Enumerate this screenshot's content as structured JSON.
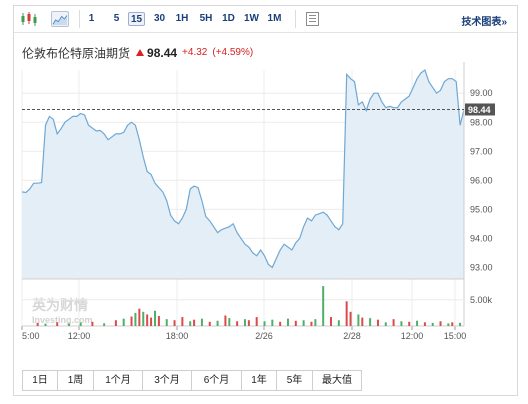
{
  "toolbar": {
    "intervals": [
      "1",
      "5",
      "15",
      "30",
      "1H",
      "5H",
      "1D",
      "1W",
      "1M"
    ],
    "active_interval": "15",
    "chart_link_label": "技术图表",
    "chart_link_suffix": "»"
  },
  "quote": {
    "name": "伦敦布伦特原油期货",
    "last": "98.44",
    "change": "+4.32",
    "change_pct": "(+4.59%)"
  },
  "watermark": {
    "cn": "英为财情",
    "en": "Investing.com"
  },
  "ranges": [
    "1日",
    "1周",
    "1个月",
    "3个月",
    "6个月",
    "1年",
    "5年",
    "最大值"
  ],
  "colors": {
    "line": "#6fa8d4",
    "area": "#e4eef7",
    "up": "#d94b4b",
    "down": "#4fae6a",
    "last_tag": "#555555",
    "link": "#1b3f7a"
  },
  "chart_data": {
    "type": "area",
    "title": "",
    "y_range": [
      92.6,
      99.8
    ],
    "y_ticks": [
      93.0,
      94.0,
      95.0,
      96.0,
      97.0,
      98.0,
      99.0
    ],
    "y_tick_labels": [
      "93.00",
      "94.00",
      "95.00",
      "96.00",
      "97.00",
      "98.00",
      "99.00"
    ],
    "x_tick_labels": [
      "5:00",
      "12:00",
      "18:00",
      "2/26",
      "2/28",
      "12:00",
      "15:00"
    ],
    "last_value": 98.44,
    "last_label": "98.44",
    "grid": true,
    "price": [
      95.6,
      95.58,
      95.7,
      95.9,
      95.9,
      95.92,
      97.9,
      98.2,
      98.1,
      97.6,
      97.78,
      98.0,
      98.1,
      98.2,
      98.2,
      98.3,
      98.25,
      97.9,
      97.8,
      97.7,
      97.72,
      97.6,
      97.4,
      97.5,
      97.6,
      97.6,
      97.65,
      97.9,
      98.0,
      97.9,
      97.4,
      96.8,
      96.3,
      96.2,
      95.9,
      95.75,
      95.6,
      95.3,
      94.8,
      94.6,
      94.5,
      94.7,
      95.0,
      95.7,
      95.8,
      95.75,
      95.3,
      94.75,
      94.6,
      94.4,
      94.2,
      94.3,
      94.35,
      94.4,
      94.5,
      94.2,
      94.0,
      93.8,
      93.7,
      93.5,
      93.4,
      93.6,
      93.4,
      93.1,
      93.0,
      93.3,
      93.6,
      93.8,
      93.7,
      93.6,
      93.85,
      94.0,
      94.4,
      94.7,
      94.6,
      94.8,
      94.85,
      94.9,
      94.8,
      94.6,
      94.4,
      94.3,
      94.5,
      99.65,
      99.5,
      99.4,
      98.6,
      98.7,
      98.4,
      98.8,
      99.0,
      99.0,
      98.7,
      98.5,
      98.55,
      98.5,
      98.5,
      98.7,
      98.8,
      98.9,
      99.2,
      99.5,
      99.7,
      99.8,
      99.4,
      99.2,
      99.0,
      99.1,
      99.4,
      99.5,
      99.5,
      99.4,
      97.9,
      98.44
    ],
    "volume_axis": {
      "range": [
        0,
        8000
      ],
      "ticks": [
        5000
      ],
      "tick_labels": [
        "5.00k"
      ]
    },
    "volume": [
      {
        "i": 4,
        "v": 600,
        "up": true
      },
      {
        "i": 6,
        "v": 450,
        "up": false
      },
      {
        "i": 9,
        "v": 700,
        "up": true
      },
      {
        "i": 12,
        "v": 500,
        "up": false
      },
      {
        "i": 15,
        "v": 650,
        "up": false
      },
      {
        "i": 18,
        "v": 800,
        "up": true
      },
      {
        "i": 21,
        "v": 520,
        "up": false
      },
      {
        "i": 24,
        "v": 1100,
        "up": true
      },
      {
        "i": 26,
        "v": 1400,
        "up": false
      },
      {
        "i": 28,
        "v": 1800,
        "up": true
      },
      {
        "i": 29,
        "v": 2500,
        "up": false
      },
      {
        "i": 30,
        "v": 3300,
        "up": true
      },
      {
        "i": 31,
        "v": 2700,
        "up": false
      },
      {
        "i": 32,
        "v": 2200,
        "up": true
      },
      {
        "i": 33,
        "v": 1600,
        "up": true
      },
      {
        "i": 34,
        "v": 2900,
        "up": false
      },
      {
        "i": 35,
        "v": 1900,
        "up": true
      },
      {
        "i": 37,
        "v": 1300,
        "up": false
      },
      {
        "i": 39,
        "v": 1100,
        "up": true
      },
      {
        "i": 41,
        "v": 1700,
        "up": true
      },
      {
        "i": 43,
        "v": 900,
        "up": false
      },
      {
        "i": 44,
        "v": 1200,
        "up": true
      },
      {
        "i": 46,
        "v": 1400,
        "up": false
      },
      {
        "i": 48,
        "v": 800,
        "up": true
      },
      {
        "i": 50,
        "v": 1000,
        "up": false
      },
      {
        "i": 52,
        "v": 2000,
        "up": true
      },
      {
        "i": 53,
        "v": 1500,
        "up": false
      },
      {
        "i": 55,
        "v": 900,
        "up": true
      },
      {
        "i": 57,
        "v": 1300,
        "up": false
      },
      {
        "i": 58,
        "v": 1100,
        "up": true
      },
      {
        "i": 60,
        "v": 1700,
        "up": true
      },
      {
        "i": 62,
        "v": 900,
        "up": false
      },
      {
        "i": 64,
        "v": 1200,
        "up": false
      },
      {
        "i": 66,
        "v": 800,
        "up": true
      },
      {
        "i": 68,
        "v": 1400,
        "up": false
      },
      {
        "i": 70,
        "v": 1000,
        "up": true
      },
      {
        "i": 72,
        "v": 1100,
        "up": false
      },
      {
        "i": 74,
        "v": 800,
        "up": true
      },
      {
        "i": 75,
        "v": 1300,
        "up": false
      },
      {
        "i": 77,
        "v": 7600,
        "up": false
      },
      {
        "i": 79,
        "v": 1700,
        "up": true
      },
      {
        "i": 81,
        "v": 1100,
        "up": false
      },
      {
        "i": 83,
        "v": 4700,
        "up": true
      },
      {
        "i": 84,
        "v": 2700,
        "up": true
      },
      {
        "i": 86,
        "v": 2200,
        "up": false
      },
      {
        "i": 87,
        "v": 1600,
        "up": true
      },
      {
        "i": 89,
        "v": 1500,
        "up": false
      },
      {
        "i": 91,
        "v": 1200,
        "up": true
      },
      {
        "i": 93,
        "v": 700,
        "up": false
      },
      {
        "i": 95,
        "v": 1300,
        "up": true
      },
      {
        "i": 97,
        "v": 900,
        "up": false
      },
      {
        "i": 99,
        "v": 800,
        "up": true
      },
      {
        "i": 101,
        "v": 1000,
        "up": false
      },
      {
        "i": 103,
        "v": 700,
        "up": true
      },
      {
        "i": 105,
        "v": 600,
        "up": false
      },
      {
        "i": 107,
        "v": 900,
        "up": true
      },
      {
        "i": 109,
        "v": 500,
        "up": false
      },
      {
        "i": 110,
        "v": 700,
        "up": true
      },
      {
        "i": 112,
        "v": 600,
        "up": false
      }
    ]
  }
}
